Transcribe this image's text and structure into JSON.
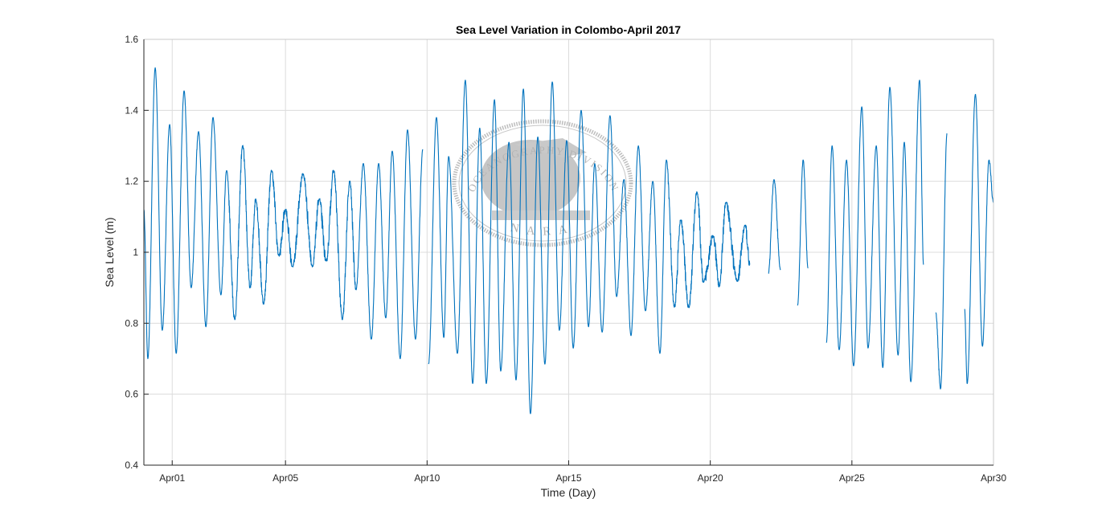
{
  "chart_data": {
    "type": "line",
    "title": "Sea Level Variation in Colombo-April 2017",
    "xlabel": "Time (Day)",
    "ylabel": "Sea Level (m)",
    "x_unit": "days since Mar 31 2017 00:00",
    "xlim": [
      0,
      30
    ],
    "ylim": [
      0.4,
      1.6
    ],
    "grid": true,
    "line_color": "#0072BD",
    "yticks": [
      0.4,
      0.6,
      0.8,
      1.0,
      1.2,
      1.4,
      1.6
    ],
    "ytick_labels": [
      "0.4",
      "0.6",
      "0.8",
      "1",
      "1.2",
      "1.4",
      "1.6"
    ],
    "xticks": [
      1,
      5,
      10,
      15,
      20,
      25,
      30
    ],
    "xtick_labels": [
      "Apr01",
      "Apr05",
      "Apr10",
      "Apr15",
      "Apr20",
      "Apr25",
      "Apr30"
    ],
    "series": [
      {
        "name": "Sea Level",
        "note": "tidal high/low extremes as [day, metres]; null = data gap",
        "extremes": [
          [
            0.0,
            1.12
          ],
          [
            0.14,
            0.7
          ],
          [
            0.4,
            1.52
          ],
          [
            0.65,
            0.78
          ],
          [
            0.91,
            1.36
          ],
          [
            1.14,
            0.715
          ],
          [
            1.42,
            1.455
          ],
          [
            1.67,
            0.9
          ],
          [
            1.93,
            1.34
          ],
          [
            2.19,
            0.79
          ],
          [
            2.44,
            1.38
          ],
          [
            2.72,
            0.88
          ],
          [
            2.92,
            1.23
          ],
          [
            3.21,
            0.81
          ],
          [
            3.49,
            1.3
          ],
          [
            3.75,
            0.9
          ],
          [
            3.95,
            1.15
          ],
          [
            4.23,
            0.855
          ],
          [
            4.51,
            1.23
          ],
          [
            4.77,
            0.99
          ],
          [
            5.0,
            1.12
          ],
          [
            5.25,
            0.96
          ],
          [
            5.62,
            1.22
          ],
          [
            5.96,
            0.96
          ],
          [
            6.19,
            1.15
          ],
          [
            6.44,
            0.975
          ],
          [
            6.7,
            1.23
          ],
          [
            7.01,
            0.81
          ],
          [
            7.27,
            1.2
          ],
          [
            7.49,
            0.895
          ],
          [
            7.75,
            1.25
          ],
          [
            8.03,
            0.755
          ],
          [
            8.29,
            1.25
          ],
          [
            8.54,
            0.815
          ],
          [
            8.77,
            1.285
          ],
          [
            9.05,
            0.7
          ],
          [
            9.31,
            1.345
          ],
          [
            9.59,
            0.755
          ],
          [
            9.85,
            1.29
          ],
          null,
          [
            10.05,
            0.685
          ],
          [
            10.33,
            1.38
          ],
          [
            10.59,
            0.76
          ],
          [
            10.76,
            1.27
          ],
          [
            11.07,
            0.715
          ],
          [
            11.35,
            1.485
          ],
          [
            11.61,
            0.63
          ],
          [
            11.86,
            1.35
          ],
          [
            12.09,
            0.63
          ],
          [
            12.38,
            1.43
          ],
          [
            12.6,
            0.665
          ],
          [
            12.89,
            1.31
          ],
          [
            13.14,
            0.64
          ],
          [
            13.4,
            1.46
          ],
          [
            13.65,
            0.545
          ],
          [
            13.91,
            1.325
          ],
          [
            14.16,
            0.685
          ],
          [
            14.42,
            1.48
          ],
          [
            14.67,
            0.78
          ],
          [
            14.93,
            1.315
          ],
          [
            15.16,
            0.73
          ],
          [
            15.44,
            1.4
          ],
          [
            15.7,
            0.79
          ],
          [
            15.92,
            1.25
          ],
          [
            16.18,
            0.775
          ],
          [
            16.46,
            1.385
          ],
          [
            16.69,
            0.875
          ],
          [
            16.95,
            1.205
          ],
          [
            17.2,
            0.765
          ],
          [
            17.46,
            1.3
          ],
          [
            17.71,
            0.835
          ],
          [
            17.97,
            1.2
          ],
          [
            18.22,
            0.715
          ],
          [
            18.45,
            1.26
          ],
          [
            18.73,
            0.845
          ],
          [
            18.96,
            1.09
          ],
          [
            19.24,
            0.845
          ],
          [
            19.53,
            1.17
          ],
          [
            19.76,
            0.915
          ],
          [
            20.1,
            1.045
          ],
          [
            20.32,
            0.905
          ],
          [
            20.55,
            1.14
          ],
          [
            20.95,
            0.92
          ],
          [
            21.23,
            1.075
          ],
          [
            21.4,
            0.965
          ],
          null,
          [
            22.05,
            0.94
          ],
          [
            22.25,
            1.205
          ],
          [
            22.48,
            0.95
          ],
          null,
          [
            23.08,
            0.85
          ],
          [
            23.28,
            1.26
          ],
          [
            23.45,
            0.955
          ],
          null,
          [
            24.1,
            0.745
          ],
          [
            24.3,
            1.3
          ],
          [
            24.55,
            0.725
          ],
          [
            24.81,
            1.26
          ],
          [
            25.06,
            0.68
          ],
          [
            25.35,
            1.41
          ],
          [
            25.57,
            0.73
          ],
          [
            25.86,
            1.3
          ],
          [
            26.09,
            0.675
          ],
          [
            26.34,
            1.465
          ],
          [
            26.63,
            0.71
          ],
          [
            26.85,
            1.31
          ],
          [
            27.08,
            0.635
          ],
          [
            27.39,
            1.485
          ],
          [
            27.53,
            0.965
          ],
          null,
          [
            27.96,
            0.83
          ],
          [
            28.13,
            0.615
          ],
          [
            28.36,
            1.335
          ],
          null,
          [
            28.98,
            0.84
          ],
          [
            29.07,
            0.63
          ],
          [
            29.36,
            1.445
          ],
          [
            29.61,
            0.735
          ],
          [
            29.84,
            1.26
          ],
          [
            30.0,
            1.14
          ]
        ]
      }
    ]
  },
  "watermark": {
    "top_text": "OCEANOGRAPHY DIVISION",
    "bottom_text": "NARA"
  }
}
